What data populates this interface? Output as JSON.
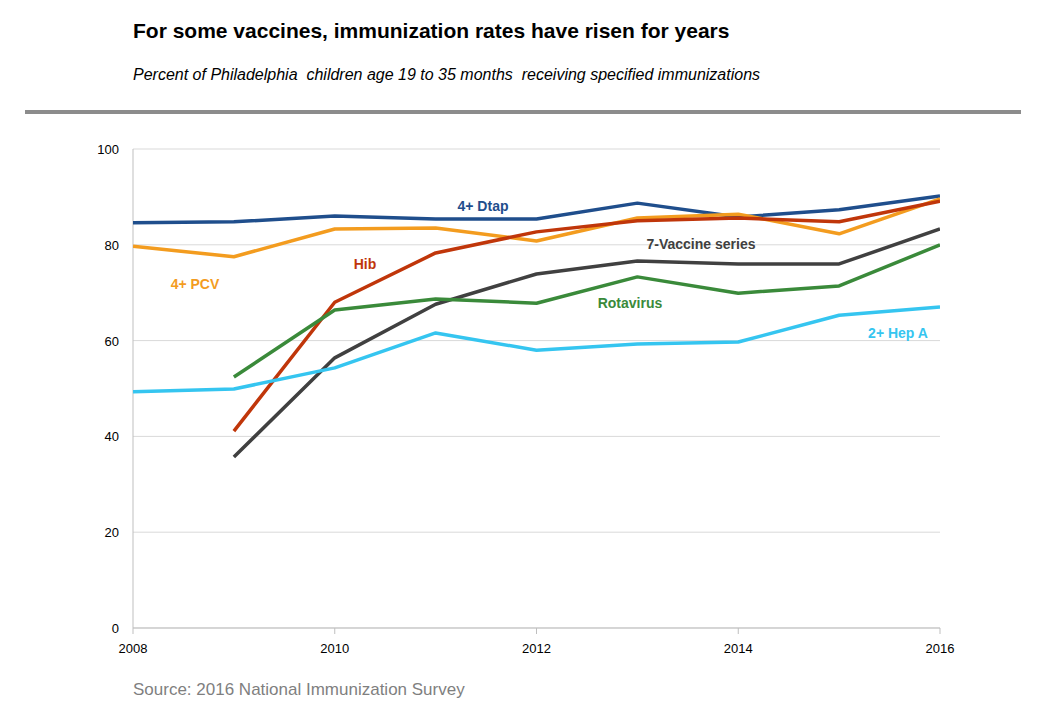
{
  "chart_data": {
    "type": "line",
    "title": "For some vaccines, immunization rates have risen for years",
    "subtitle": "Percent of Philadelphia  children age 19 to 35 months  receiving specified immunizations",
    "source": "Source: 2016 National Immunization Survey",
    "x": [
      2008,
      2009,
      2010,
      2011,
      2012,
      2013,
      2014,
      2015,
      2016
    ],
    "xlim": [
      2008,
      2016
    ],
    "xticks": [
      2008,
      2010,
      2012,
      2014,
      2016
    ],
    "ylim": [
      0,
      100
    ],
    "yticks": [
      0,
      20,
      40,
      60,
      80,
      100
    ],
    "grid": true,
    "series": [
      {
        "name": "4+ Dtap",
        "color": "#1f4e8c",
        "values": [
          84.6,
          84.8,
          86,
          85.4,
          85.4,
          88.7,
          85.8,
          87.3,
          90.2
        ]
      },
      {
        "name": "4+ PCV",
        "color": "#f39c1f",
        "values": [
          79.7,
          77.5,
          83.3,
          83.5,
          80.8,
          85.6,
          86.4,
          82.3,
          89.6
        ]
      },
      {
        "name": "Hib",
        "color": "#c0360a",
        "values": [
          null,
          41.1,
          68,
          78.3,
          82.7,
          85,
          85.6,
          84.8,
          89.1
        ]
      },
      {
        "name": "7-Vaccine series",
        "color": "#404040",
        "values": [
          null,
          35.7,
          56.4,
          67.6,
          73.9,
          76.6,
          76,
          76,
          83.3
        ]
      },
      {
        "name": "Rotavirus",
        "color": "#3a8a3a",
        "values": [
          null,
          52.4,
          66.4,
          68.7,
          67.8,
          73.3,
          69.9,
          71.4,
          80
        ]
      },
      {
        "name": "2+ Hep A",
        "color": "#35c5f0",
        "values": [
          49.3,
          49.9,
          54.3,
          61.6,
          58,
          59.3,
          59.7,
          65.3,
          67
        ]
      }
    ]
  }
}
